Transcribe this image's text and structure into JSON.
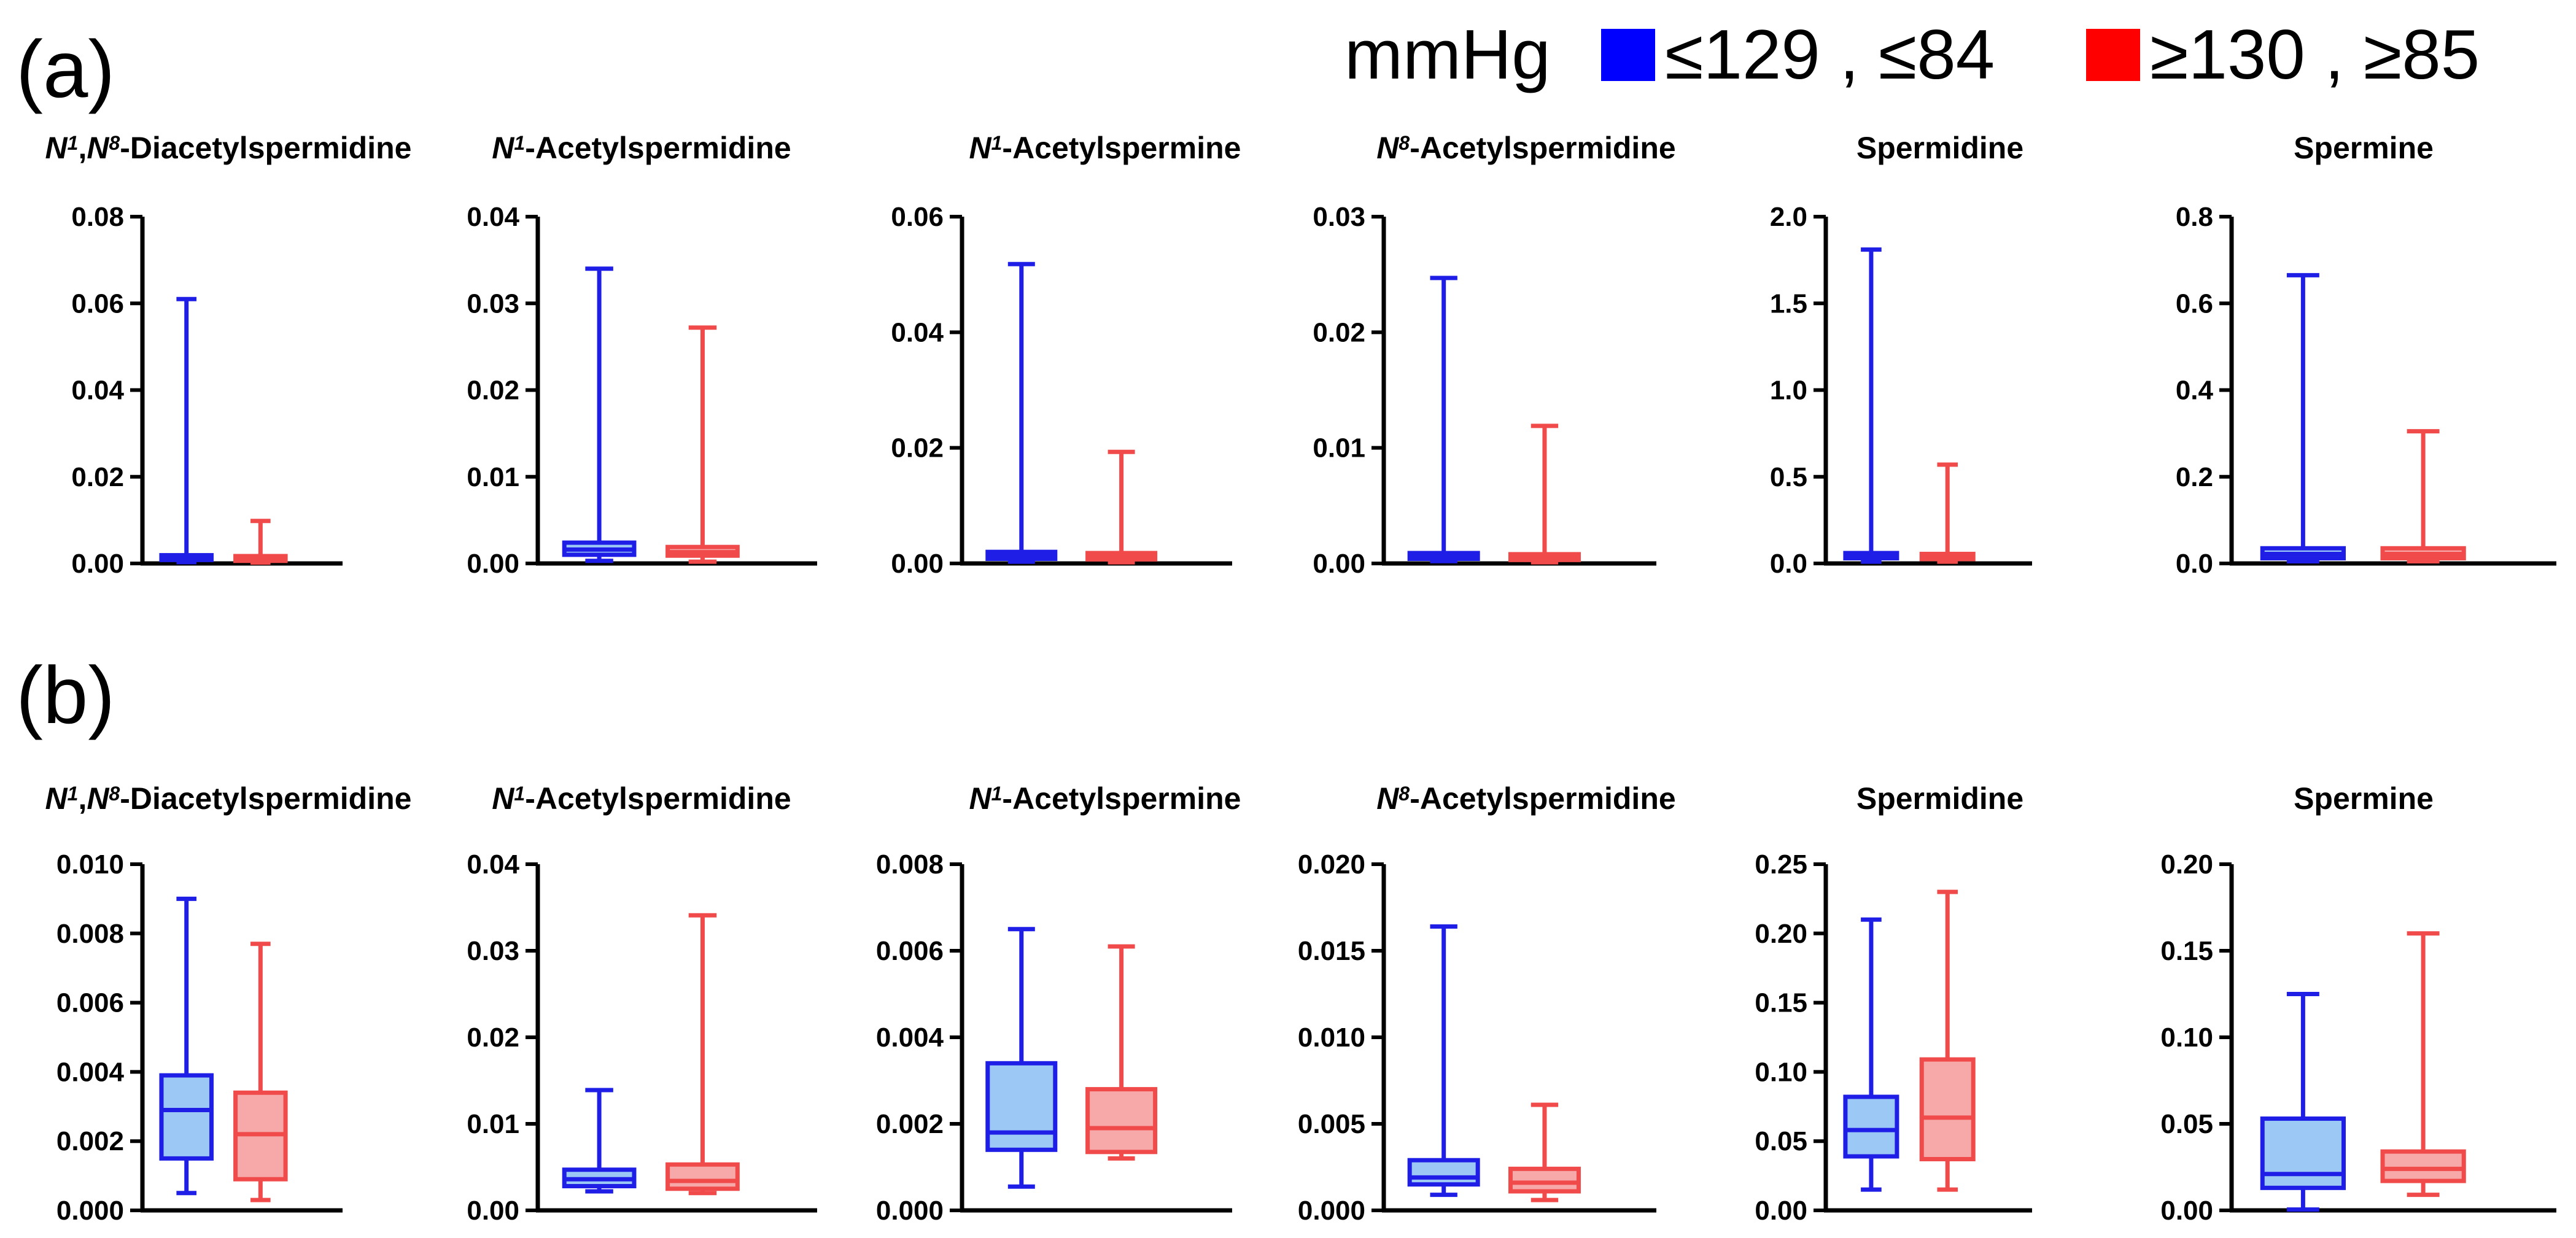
{
  "panels": [
    {
      "label": "(a)"
    },
    {
      "label": "(b)"
    }
  ],
  "legend": {
    "unit": "mmHg",
    "items": [
      {
        "label": "≤129 , ≤84",
        "color": "#0000ff"
      },
      {
        "label": "≥130 , ≥85",
        "color": "#ff0000"
      }
    ]
  },
  "colors": {
    "group1_stroke": "#1e1ee6",
    "group1_fill": "#9cc8f5",
    "group2_stroke": "#f04a4a",
    "group2_fill": "#f7a9a9",
    "axis": "#000000"
  },
  "chart_data": [
    {
      "type": "box",
      "panel": "(a)",
      "title": [
        {
          "t": "N",
          "i": true
        },
        {
          "t": "1",
          "s": true,
          "i": true
        },
        {
          "t": ",",
          "i": false
        },
        {
          "t": "N",
          "i": true
        },
        {
          "t": "8",
          "s": true,
          "i": true
        },
        {
          "t": "-Diacetylspermidine",
          "i": false
        }
      ],
      "ylim": [
        0,
        0.08
      ],
      "yticks": [
        "0.00",
        "0.02",
        "0.04",
        "0.06",
        "0.08"
      ],
      "groups": [
        "≤129 , ≤84",
        "≥130 , ≥85"
      ],
      "boxes": [
        {
          "min": 0.0003,
          "q1": 0.0008,
          "median": 0.0012,
          "q3": 0.0019,
          "max": 0.061
        },
        {
          "min": 0.0002,
          "q1": 0.0006,
          "median": 0.001,
          "q3": 0.0017,
          "max": 0.0098
        }
      ]
    },
    {
      "type": "box",
      "panel": "(a)",
      "title": [
        {
          "t": "N",
          "i": true
        },
        {
          "t": "1",
          "s": true,
          "i": true
        },
        {
          "t": "-Acetylspermidine",
          "i": false
        }
      ],
      "ylim": [
        0,
        0.04
      ],
      "yticks": [
        "0.00",
        "0.01",
        "0.02",
        "0.03",
        "0.04"
      ],
      "groups": [
        "≤129 , ≤84",
        "≥130 , ≥85"
      ],
      "boxes": [
        {
          "min": 0.0003,
          "q1": 0.001,
          "median": 0.0016,
          "q3": 0.0024,
          "max": 0.034
        },
        {
          "min": 0.0002,
          "q1": 0.0009,
          "median": 0.0013,
          "q3": 0.0019,
          "max": 0.0272
        }
      ]
    },
    {
      "type": "box",
      "panel": "(a)",
      "title": [
        {
          "t": "N",
          "i": true
        },
        {
          "t": "1",
          "s": true,
          "i": true
        },
        {
          "t": "-Acetylspermine",
          "i": false
        }
      ],
      "ylim": [
        0,
        0.06
      ],
      "yticks": [
        "0.00",
        "0.02",
        "0.04",
        "0.06"
      ],
      "groups": [
        "≤129 , ≤84",
        "≥130 , ≥85"
      ],
      "boxes": [
        {
          "min": 0.0003,
          "q1": 0.0008,
          "median": 0.0013,
          "q3": 0.002,
          "max": 0.0518
        },
        {
          "min": 0.0002,
          "q1": 0.0007,
          "median": 0.0012,
          "q3": 0.0018,
          "max": 0.0193
        }
      ]
    },
    {
      "type": "box",
      "panel": "(a)",
      "title": [
        {
          "t": "N",
          "i": true
        },
        {
          "t": "8",
          "s": true,
          "i": true
        },
        {
          "t": "-Acetylspermidine",
          "i": false
        }
      ],
      "ylim": [
        0,
        0.03
      ],
      "yticks": [
        "0.00",
        "0.01",
        "0.02",
        "0.03"
      ],
      "groups": [
        "≤129 , ≤84",
        "≥130 , ≥85"
      ],
      "boxes": [
        {
          "min": 0.0002,
          "q1": 0.0004,
          "median": 0.0006,
          "q3": 0.0009,
          "max": 0.0247
        },
        {
          "min": 0.0001,
          "q1": 0.0003,
          "median": 0.0005,
          "q3": 0.0008,
          "max": 0.0119
        }
      ]
    },
    {
      "type": "box",
      "panel": "(a)",
      "title": [
        {
          "t": "Spermidine",
          "i": false
        }
      ],
      "ylim": [
        0,
        2.0
      ],
      "yticks": [
        "0.0",
        "0.5",
        "1.0",
        "1.5",
        "2.0"
      ],
      "groups": [
        "≤129 , ≤84",
        "≥130 , ≥85"
      ],
      "boxes": [
        {
          "min": 0.01,
          "q1": 0.03,
          "median": 0.045,
          "q3": 0.06,
          "max": 1.81
        },
        {
          "min": 0.01,
          "q1": 0.025,
          "median": 0.04,
          "q3": 0.055,
          "max": 0.57
        }
      ]
    },
    {
      "type": "box",
      "panel": "(a)",
      "title": [
        {
          "t": "Spermine",
          "i": false
        }
      ],
      "ylim": [
        0,
        0.8
      ],
      "yticks": [
        "0.0",
        "0.2",
        "0.4",
        "0.6",
        "0.8"
      ],
      "groups": [
        "≤129 , ≤84",
        "≥130 , ≥85"
      ],
      "boxes": [
        {
          "min": 0.005,
          "q1": 0.012,
          "median": 0.022,
          "q3": 0.035,
          "max": 0.665
        },
        {
          "min": 0.005,
          "q1": 0.012,
          "median": 0.022,
          "q3": 0.035,
          "max": 0.305
        }
      ]
    },
    {
      "type": "box",
      "panel": "(b)",
      "title": [
        {
          "t": "N",
          "i": true
        },
        {
          "t": "1",
          "s": true,
          "i": true
        },
        {
          "t": ",",
          "i": false
        },
        {
          "t": "N",
          "i": true
        },
        {
          "t": "8",
          "s": true,
          "i": true
        },
        {
          "t": "-Diacetylspermidine",
          "i": false
        }
      ],
      "ylim": [
        0,
        0.01
      ],
      "yticks": [
        "0.000",
        "0.002",
        "0.004",
        "0.006",
        "0.008",
        "0.010"
      ],
      "groups": [
        "≤129 , ≤84",
        "≥130 , ≥85"
      ],
      "boxes": [
        {
          "min": 0.0005,
          "q1": 0.0015,
          "median": 0.0029,
          "q3": 0.0039,
          "max": 0.009
        },
        {
          "min": 0.0003,
          "q1": 0.0009,
          "median": 0.0022,
          "q3": 0.0034,
          "max": 0.0077
        }
      ]
    },
    {
      "type": "box",
      "panel": "(b)",
      "title": [
        {
          "t": "N",
          "i": true
        },
        {
          "t": "1",
          "s": true,
          "i": true
        },
        {
          "t": "-Acetylspermidine",
          "i": false
        }
      ],
      "ylim": [
        0,
        0.04
      ],
      "yticks": [
        "0.00",
        "0.01",
        "0.02",
        "0.03",
        "0.04"
      ],
      "groups": [
        "≤129 , ≤84",
        "≥130 , ≥85"
      ],
      "boxes": [
        {
          "min": 0.0022,
          "q1": 0.0028,
          "median": 0.0036,
          "q3": 0.0047,
          "max": 0.0139
        },
        {
          "min": 0.002,
          "q1": 0.0025,
          "median": 0.0034,
          "q3": 0.0053,
          "max": 0.0341
        }
      ]
    },
    {
      "type": "box",
      "panel": "(b)",
      "title": [
        {
          "t": "N",
          "i": true
        },
        {
          "t": "1",
          "s": true,
          "i": true
        },
        {
          "t": "-Acetylspermine",
          "i": false
        }
      ],
      "ylim": [
        0,
        0.008
      ],
      "yticks": [
        "0.000",
        "0.002",
        "0.004",
        "0.006",
        "0.008"
      ],
      "groups": [
        "≤129 , ≤84",
        "≥130 , ≥85"
      ],
      "boxes": [
        {
          "min": 0.00055,
          "q1": 0.0014,
          "median": 0.0018,
          "q3": 0.0034,
          "max": 0.0065
        },
        {
          "min": 0.0012,
          "q1": 0.00135,
          "median": 0.0019,
          "q3": 0.0028,
          "max": 0.0061
        }
      ]
    },
    {
      "type": "box",
      "panel": "(b)",
      "title": [
        {
          "t": "N",
          "i": true
        },
        {
          "t": "8",
          "s": true,
          "i": true
        },
        {
          "t": "-Acetylspermidine",
          "i": false
        }
      ],
      "ylim": [
        0,
        0.02
      ],
      "yticks": [
        "0.000",
        "0.005",
        "0.010",
        "0.015",
        "0.020"
      ],
      "groups": [
        "≤129 , ≤84",
        "≥130 , ≥85"
      ],
      "boxes": [
        {
          "min": 0.0009,
          "q1": 0.0015,
          "median": 0.0019,
          "q3": 0.0029,
          "max": 0.0164
        },
        {
          "min": 0.0006,
          "q1": 0.0011,
          "median": 0.0016,
          "q3": 0.0024,
          "max": 0.0061
        }
      ]
    },
    {
      "type": "box",
      "panel": "(b)",
      "title": [
        {
          "t": "Spermidine",
          "i": false
        }
      ],
      "ylim": [
        0,
        0.25
      ],
      "yticks": [
        "0.00",
        "0.05",
        "0.10",
        "0.15",
        "0.20",
        "0.25"
      ],
      "groups": [
        "≤129 , ≤84",
        "≥130 , ≥85"
      ],
      "boxes": [
        {
          "min": 0.015,
          "q1": 0.039,
          "median": 0.058,
          "q3": 0.082,
          "max": 0.21
        },
        {
          "min": 0.015,
          "q1": 0.037,
          "median": 0.067,
          "q3": 0.109,
          "max": 0.23
        }
      ]
    },
    {
      "type": "box",
      "panel": "(b)",
      "title": [
        {
          "t": "Spermine",
          "i": false
        }
      ],
      "ylim": [
        0,
        0.2
      ],
      "yticks": [
        "0.00",
        "0.05",
        "0.10",
        "0.15",
        "0.20"
      ],
      "groups": [
        "≤129 , ≤84",
        "≥130 , ≥85"
      ],
      "boxes": [
        {
          "min": 0.0005,
          "q1": 0.013,
          "median": 0.021,
          "q3": 0.053,
          "max": 0.125
        },
        {
          "min": 0.009,
          "q1": 0.017,
          "median": 0.024,
          "q3": 0.034,
          "max": 0.16
        }
      ]
    }
  ]
}
